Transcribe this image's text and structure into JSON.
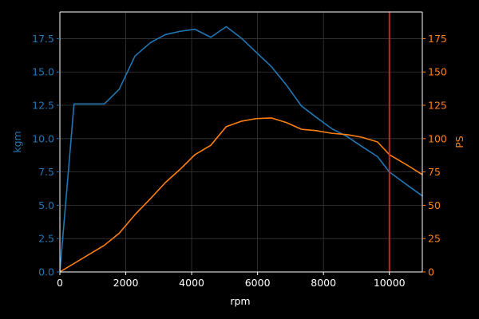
{
  "chart_data": {
    "type": "line",
    "title": "",
    "xlabel": "rpm",
    "ylabel_left": "kgm",
    "ylabel_right": "PS",
    "xlim": [
      0,
      11000
    ],
    "ylim_left": [
      0,
      19.5
    ],
    "ylim_right": [
      0,
      195
    ],
    "x_ticks": [
      0,
      2000,
      4000,
      6000,
      8000,
      10000
    ],
    "x_tick_labels": [
      "0",
      "2000",
      "4000",
      "6000",
      "8000",
      "10000"
    ],
    "y_left_ticks": [
      0,
      2.5,
      5,
      7.5,
      10,
      12.5,
      15,
      17.5
    ],
    "y_left_tick_labels": [
      "0.0",
      "2.5",
      "5.0",
      "7.5",
      "10.0",
      "12.5",
      "15.0",
      "17.5"
    ],
    "y_right_ticks": [
      0,
      25,
      50,
      75,
      100,
      125,
      150,
      175
    ],
    "y_right_tick_labels": [
      "0",
      "25",
      "50",
      "75",
      "100",
      "125",
      "150",
      "175"
    ],
    "grid": true,
    "series": [
      {
        "name": "",
        "axis": "left",
        "color": "#1f77b4",
        "x": [
          0,
          430,
          1350,
          1800,
          2280,
          2750,
          3200,
          3650,
          4100,
          4580,
          5050,
          5500,
          5950,
          6420,
          6880,
          7330,
          7780,
          8250,
          8720,
          9170,
          9640,
          10000,
          10550,
          11000
        ],
        "y": [
          0.0,
          12.6,
          12.6,
          13.7,
          16.2,
          17.2,
          17.8,
          18.05,
          18.2,
          17.6,
          18.4,
          17.55,
          16.5,
          15.4,
          14.0,
          12.45,
          11.6,
          10.75,
          10.15,
          9.4,
          8.65,
          7.5,
          6.5,
          5.7
        ]
      },
      {
        "name": "",
        "axis": "right",
        "color": "#ff7f0e",
        "x": [
          0,
          1350,
          1800,
          2280,
          2750,
          3200,
          3650,
          4100,
          4580,
          5050,
          5500,
          5950,
          6420,
          6880,
          7330,
          7780,
          8250,
          8720,
          9170,
          9640,
          10000,
          10550,
          11000
        ],
        "y": [
          0,
          20,
          29,
          43,
          55,
          67,
          77,
          88,
          95,
          109,
          113,
          115,
          115.5,
          112,
          107,
          106,
          104,
          103,
          101,
          97.5,
          88,
          80,
          73
        ]
      }
    ],
    "vline": {
      "x": 10000,
      "color": "#d62728"
    },
    "colors": {
      "background": "#000000",
      "grid": "#3a3a3a",
      "spine": "#ffffff",
      "left_axis": "#1f77b4",
      "right_axis": "#ff7f0e",
      "bottom_axis": "#ffffff"
    }
  }
}
